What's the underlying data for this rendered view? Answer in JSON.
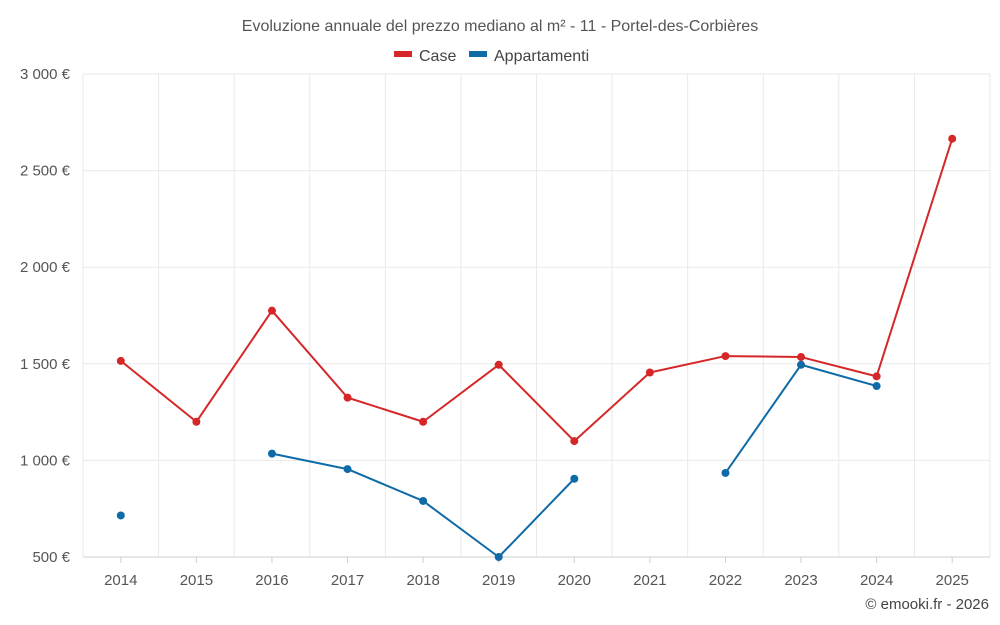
{
  "chart_data": {
    "type": "line",
    "title": "Evoluzione annuale del prezzo mediano al m² - 11 - Portel-des-Corbières",
    "categories": [
      "2014",
      "2015",
      "2016",
      "2017",
      "2018",
      "2019",
      "2020",
      "2021",
      "2022",
      "2023",
      "2024",
      "2025"
    ],
    "series": [
      {
        "name": "Case",
        "color": "#d62728",
        "values": [
          1515,
          1200,
          1775,
          1325,
          1200,
          1495,
          1100,
          1455,
          1540,
          1535,
          1435,
          2665
        ]
      },
      {
        "name": "Appartamenti",
        "color": "#0f6ba8",
        "values": [
          715,
          null,
          1035,
          955,
          790,
          500,
          905,
          null,
          935,
          1495,
          1385,
          null
        ]
      }
    ],
    "y_ticks": [
      500,
      1000,
      1500,
      2000,
      2500,
      3000
    ],
    "y_tick_labels": [
      "500 €",
      "1 000 €",
      "1 500 €",
      "2 000 €",
      "2 500 €",
      "3 000 €"
    ],
    "ylim": [
      500,
      3000
    ],
    "xlabel": "",
    "ylabel": "",
    "grid": true,
    "legend_position": "top-center"
  },
  "credit": "© emooki.fr - 2026"
}
